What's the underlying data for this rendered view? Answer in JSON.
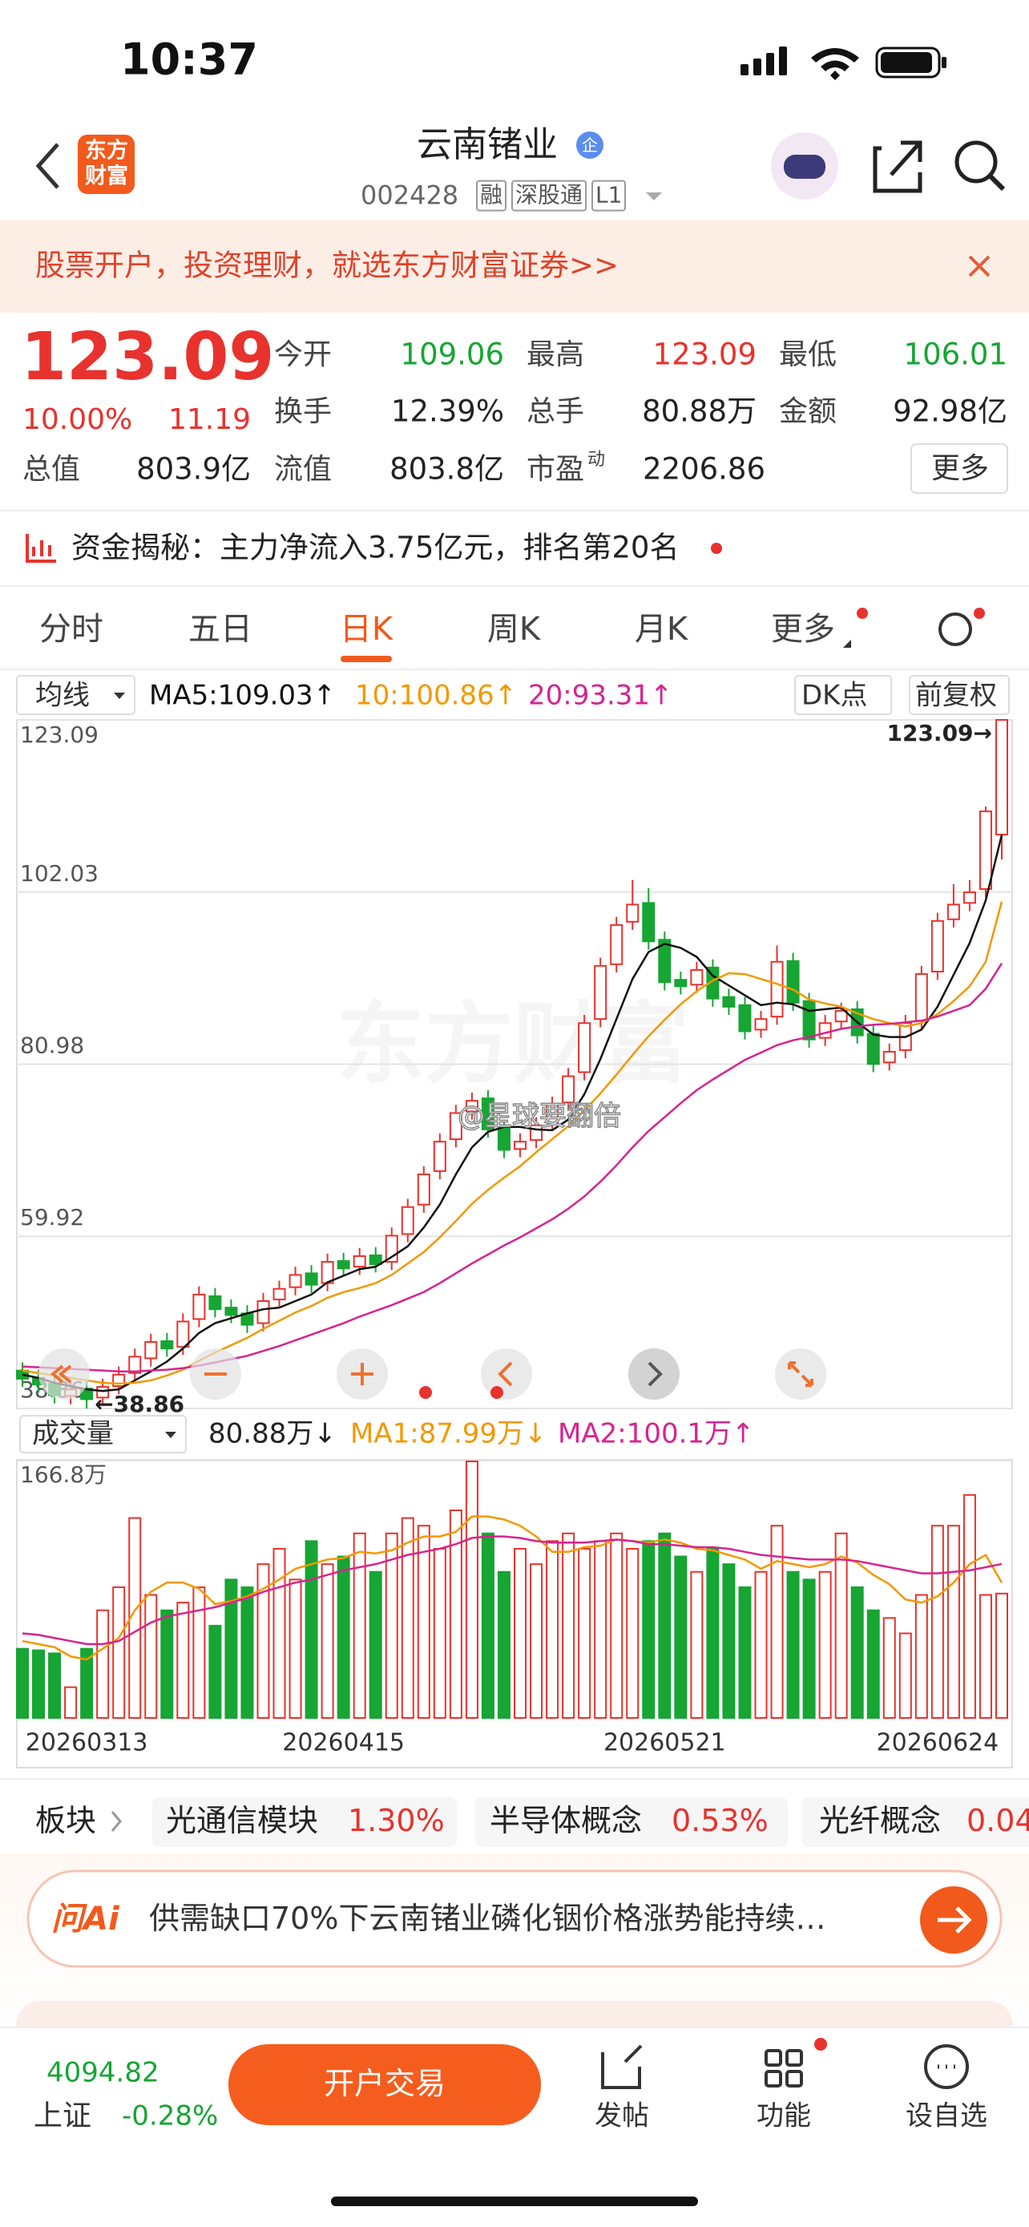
{
  "status_bar": {
    "time": "10:37"
  },
  "header": {
    "logo": "东方财富",
    "title": "云南锗业",
    "badge": "企",
    "code": "002428",
    "tags": [
      "融",
      "深股通",
      "L1"
    ]
  },
  "banner": {
    "text": "股票开户，投资理财，就选东方财富证券>>"
  },
  "quote": {
    "price": "123.09",
    "change_pct": "10.00%",
    "change": "11.19",
    "more": "更多",
    "stats": [
      [
        {
          "label": "今开",
          "value": "109.06",
          "color": "#17a533"
        },
        {
          "label": "最高",
          "value": "123.09",
          "color": "#e8322d"
        },
        {
          "label": "最低",
          "value": "106.01",
          "color": "#17a533"
        }
      ],
      [
        {
          "label": "换手",
          "value": "12.39%"
        },
        {
          "label": "总手",
          "value": "80.88万"
        },
        {
          "label": "金额",
          "value": "92.98亿"
        }
      ],
      [
        {
          "label": "总值",
          "value": "803.9亿"
        },
        {
          "label": "流值",
          "value": "803.8亿"
        },
        {
          "label": "市盈",
          "sup": "动",
          "value": "2206.86"
        }
      ]
    ]
  },
  "fund_flow": "资金揭秘：主力净流入3.75亿元，排名第20名",
  "tabs": [
    "分时",
    "五日",
    "日K",
    "周K",
    "月K",
    "更多"
  ],
  "active_tab": 2,
  "watermarks": [
    "东方财富",
    "@星球要翻倍"
  ],
  "chart_data": [
    {
      "type": "candlestick",
      "selector": "均线",
      "dk": "DK点",
      "adjust": "前复权",
      "up_color": "#e8322d",
      "down_color": "#17a533",
      "ylim": [
        38.86,
        123.09
      ],
      "yticks": [
        123.09,
        102.03,
        80.98,
        59.92,
        38.86
      ],
      "grid": true,
      "max_label": "123.09→",
      "min_label": "←38.86",
      "open": [
        43.5,
        42.6,
        41.9,
        40.4,
        41.3,
        40.2,
        41.6,
        43.2,
        45.0,
        47.1,
        46.4,
        49.8,
        52.6,
        51.2,
        50.5,
        49.3,
        52.2,
        53.7,
        55.4,
        54.2,
        56.9,
        56.2,
        57.6,
        56.8,
        60.2,
        63.8,
        67.9,
        71.8,
        75.2,
        76.8,
        73.2,
        70.6,
        71.7,
        73.8,
        76.3,
        80.0,
        86.5,
        93.2,
        98.4,
        100.7,
        96.2,
        91.3,
        90.7,
        92.8,
        89.2,
        88.2,
        85.2,
        86.8,
        93.6,
        88.7,
        84.2,
        86.2,
        87.7,
        84.7,
        81.2,
        82.7,
        86.3,
        92.3,
        98.7,
        100.7,
        102.4,
        109.06
      ],
      "close": [
        42.5,
        41.8,
        40.5,
        41.2,
        40.0,
        41.5,
        43.0,
        45.2,
        47.0,
        46.2,
        49.5,
        52.8,
        51.0,
        50.3,
        49.1,
        52.0,
        53.5,
        55.2,
        54.0,
        56.8,
        56.0,
        57.5,
        56.5,
        60.0,
        63.5,
        67.5,
        71.5,
        75.0,
        76.5,
        73.0,
        70.5,
        71.5,
        73.5,
        76.0,
        79.5,
        86.0,
        93.0,
        98.0,
        100.5,
        96.0,
        91.0,
        90.5,
        92.5,
        89.0,
        88.0,
        85.0,
        86.5,
        93.5,
        88.5,
        84.0,
        86.0,
        87.5,
        84.5,
        81.0,
        82.5,
        86.0,
        92.0,
        98.5,
        100.5,
        102.0,
        111.9,
        123.09
      ],
      "high": [
        44.5,
        43.6,
        42.9,
        42.2,
        42.3,
        42.5,
        44.0,
        46.2,
        48.0,
        48.1,
        50.5,
        53.8,
        53.6,
        52.2,
        51.5,
        53.0,
        54.5,
        56.2,
        56.4,
        57.8,
        57.9,
        58.5,
        58.6,
        61.0,
        64.5,
        68.5,
        72.5,
        76.0,
        77.5,
        77.8,
        74.2,
        72.5,
        74.5,
        77.0,
        80.5,
        87.0,
        94.0,
        99.0,
        103.5,
        102.5,
        97.2,
        92.3,
        93.5,
        93.8,
        90.2,
        89.2,
        87.5,
        95.5,
        94.6,
        89.7,
        87.0,
        88.5,
        88.7,
        85.7,
        83.5,
        87.0,
        93.0,
        99.5,
        103.0,
        103.5,
        112.5,
        123.09
      ],
      "low": [
        41.5,
        40.8,
        39.5,
        39.4,
        38.86,
        39.2,
        40.6,
        42.2,
        44.0,
        45.2,
        45.4,
        48.8,
        50.0,
        49.3,
        48.1,
        48.3,
        51.2,
        52.7,
        53.0,
        53.2,
        55.0,
        55.2,
        55.5,
        55.8,
        59.2,
        62.8,
        66.9,
        70.8,
        74.2,
        72.0,
        69.5,
        69.6,
        70.7,
        72.8,
        75.3,
        79.0,
        85.5,
        92.2,
        97.4,
        95.0,
        90.0,
        89.5,
        89.7,
        88.0,
        87.0,
        84.0,
        84.2,
        85.8,
        87.5,
        83.0,
        83.2,
        85.2,
        83.5,
        80.0,
        80.2,
        81.7,
        85.3,
        91.3,
        97.7,
        99.7,
        101.4,
        106.01
      ],
      "lines": [
        {
          "label": "MA5:109.03↑",
          "color": "#111111",
          "values": [
            43.0,
            42.6,
            42.0,
            41.6,
            41.2,
            41.0,
            41.2,
            42.3,
            43.4,
            44.6,
            46.2,
            48.1,
            49.3,
            49.9,
            50.5,
            51.0,
            51.2,
            52.0,
            52.8,
            54.3,
            55.1,
            55.9,
            56.2,
            57.4,
            58.7,
            61.0,
            63.8,
            67.5,
            70.8,
            72.7,
            73.3,
            73.3,
            73.0,
            72.9,
            74.2,
            77.3,
            81.6,
            86.5,
            91.4,
            94.7,
            95.7,
            95.2,
            94.1,
            91.8,
            90.6,
            89.4,
            88.2,
            88.5,
            88.3,
            87.5,
            87.7,
            87.9,
            86.1,
            84.6,
            84.3,
            84.3,
            85.2,
            88.0,
            91.9,
            95.8,
            101.0,
            109.03
          ]
        },
        {
          "label": "10:100.86↑",
          "color": "#f39800",
          "values": [
            43.5,
            43.2,
            42.9,
            42.6,
            42.3,
            42.0,
            41.9,
            42.0,
            42.3,
            42.9,
            43.6,
            44.7,
            45.7,
            46.6,
            47.5,
            48.6,
            49.6,
            50.6,
            51.4,
            52.4,
            53.1,
            53.6,
            54.2,
            55.2,
            56.6,
            58.0,
            59.8,
            61.8,
            63.9,
            65.6,
            67.1,
            68.5,
            70.2,
            71.8,
            73.4,
            75.3,
            77.4,
            79.7,
            82.1,
            84.4,
            86.4,
            88.3,
            89.9,
            91.2,
            92.1,
            92.0,
            91.4,
            90.8,
            90.1,
            88.9,
            88.4,
            88.0,
            87.2,
            86.5,
            86.0,
            85.6,
            86.0,
            87.1,
            88.7,
            90.5,
            93.5,
            100.86
          ]
        },
        {
          "label": "20:93.31↑",
          "color": "#d6248f",
          "values": [
            44.0,
            43.9,
            43.8,
            43.7,
            43.6,
            43.5,
            43.4,
            43.4,
            43.5,
            43.6,
            43.8,
            44.1,
            44.5,
            44.9,
            45.3,
            45.9,
            46.5,
            47.2,
            47.9,
            48.6,
            49.3,
            50.1,
            50.8,
            51.5,
            52.3,
            53.1,
            54.2,
            55.4,
            56.6,
            57.7,
            58.8,
            59.8,
            60.9,
            62.0,
            63.3,
            64.8,
            66.6,
            68.6,
            70.8,
            72.8,
            74.5,
            76.2,
            77.8,
            79.1,
            80.3,
            81.5,
            82.4,
            83.3,
            83.9,
            84.3,
            84.8,
            85.3,
            85.6,
            85.8,
            85.9,
            86.1,
            86.3,
            86.8,
            87.5,
            88.2,
            90.2,
            93.31
          ]
        }
      ]
    },
    {
      "type": "bar",
      "selector": "成交量",
      "current": "80.88万↓",
      "ylim": [
        0,
        166.8
      ],
      "yticks": [
        {
          "value": 166.8,
          "label": "166.8万"
        }
      ],
      "categories": [
        null,
        null,
        null,
        null,
        "20260313",
        null,
        null,
        null,
        null,
        null,
        null,
        null,
        null,
        null,
        null,
        null,
        null,
        null,
        null,
        null,
        "20260415",
        null,
        null,
        null,
        null,
        null,
        null,
        null,
        null,
        null,
        null,
        null,
        null,
        null,
        null,
        null,
        null,
        null,
        null,
        null,
        "20260521",
        null,
        null,
        null,
        null,
        null,
        null,
        null,
        null,
        null,
        null,
        null,
        null,
        null,
        null,
        null,
        null,
        "20260624",
        null,
        null,
        null,
        null
      ],
      "values": [
        45,
        44,
        42,
        20,
        45,
        70,
        85,
        130,
        80,
        70,
        75,
        85,
        60,
        90,
        85,
        100,
        110,
        90,
        115,
        100,
        105,
        120,
        95,
        120,
        130,
        125,
        110,
        135,
        166.8,
        120,
        95,
        110,
        100,
        115,
        120,
        110,
        115,
        120,
        110,
        115,
        120,
        105,
        95,
        110,
        100,
        85,
        95,
        125,
        95,
        90,
        95,
        120,
        85,
        70,
        65,
        55,
        80,
        125,
        125,
        145,
        80,
        80.88
      ],
      "lines": [
        {
          "label": "MA1:87.99万↓",
          "color": "#f39800",
          "values": [
            50,
            48,
            46,
            40,
            38,
            45,
            52,
            70,
            82,
            88,
            88,
            84,
            74,
            76,
            79,
            84,
            90,
            97,
            100,
            103,
            104,
            108,
            107,
            109,
            114,
            118,
            118,
            121,
            131,
            131,
            129,
            125,
            118,
            108,
            108,
            111,
            112,
            116,
            115,
            114,
            116,
            114,
            110,
            109,
            106,
            103,
            97,
            102,
            100,
            98,
            100,
            105,
            101,
            93,
            87,
            77,
            75,
            79,
            88,
            100,
            106,
            87.99
          ]
        },
        {
          "label": "MA2:100.1万↑",
          "color": "#d6248f",
          "values": [
            55,
            54,
            52,
            50,
            48,
            48,
            50,
            56,
            62,
            66,
            68,
            70,
            72,
            75,
            78,
            82,
            85,
            88,
            90,
            93,
            96,
            98,
            100,
            103,
            106,
            108,
            110,
            113,
            117,
            118,
            118,
            117,
            115,
            114,
            114,
            114,
            115,
            116,
            115,
            113,
            113,
            112,
            111,
            111,
            110,
            108,
            106,
            105,
            104,
            103,
            103,
            103,
            102,
            100,
            98,
            96,
            94,
            94,
            95,
            96,
            98,
            100.1
          ]
        }
      ]
    }
  ],
  "sectors": {
    "label": "板块",
    "items": [
      {
        "name": "光通信模块",
        "change": "1.30%"
      },
      {
        "name": "半导体概念",
        "change": "0.53%"
      },
      {
        "name": "光纤概念",
        "change": "0.04"
      }
    ]
  },
  "ai": {
    "badge": "问Ai",
    "text": "供需缺口70%下云南锗业磷化铟价格涨势能持续…"
  },
  "bottom_bar": {
    "index_value": "4094.82",
    "index_name": "上证",
    "index_change": "-0.28%",
    "trade_button": "开户交易",
    "actions": [
      "发帖",
      "功能",
      "设自选"
    ]
  }
}
